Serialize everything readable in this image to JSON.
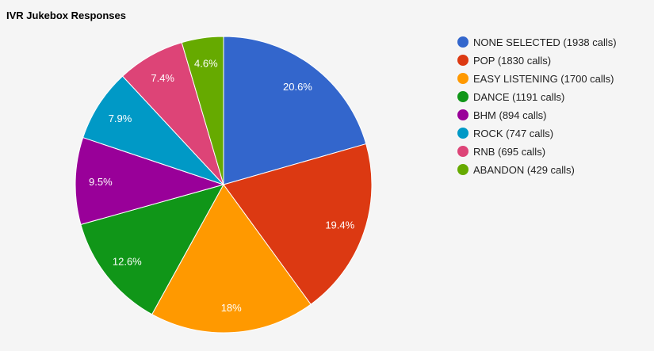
{
  "chart_data": {
    "type": "pie",
    "title": "IVR Jukebox Responses",
    "legend_position": "right",
    "slices": [
      {
        "label": "NONE SELECTED",
        "value": 1938,
        "legend": "NONE SELECTED (1938 calls)",
        "pct_label": "20.6%",
        "color": "#3366cc"
      },
      {
        "label": "POP",
        "value": 1830,
        "legend": "POP (1830 calls)",
        "pct_label": "19.4%",
        "color": "#dc3912"
      },
      {
        "label": "EASY LISTENING",
        "value": 1700,
        "legend": "EASY LISTENING (1700 calls)",
        "pct_label": "18%",
        "color": "#ff9900"
      },
      {
        "label": "DANCE",
        "value": 1191,
        "legend": "DANCE (1191 calls)",
        "pct_label": "12.6%",
        "color": "#109618"
      },
      {
        "label": "BHM",
        "value": 894,
        "legend": "BHM (894 calls)",
        "pct_label": "9.5%",
        "color": "#990099"
      },
      {
        "label": "ROCK",
        "value": 747,
        "legend": "ROCK (747 calls)",
        "pct_label": "7.9%",
        "color": "#0099c6"
      },
      {
        "label": "RNB",
        "value": 695,
        "legend": "RNB (695 calls)",
        "pct_label": "7.4%",
        "color": "#dd4477"
      },
      {
        "label": "ABANDON",
        "value": 429,
        "legend": "ABANDON (429 calls)",
        "pct_label": "4.6%",
        "color": "#66aa00"
      }
    ]
  }
}
